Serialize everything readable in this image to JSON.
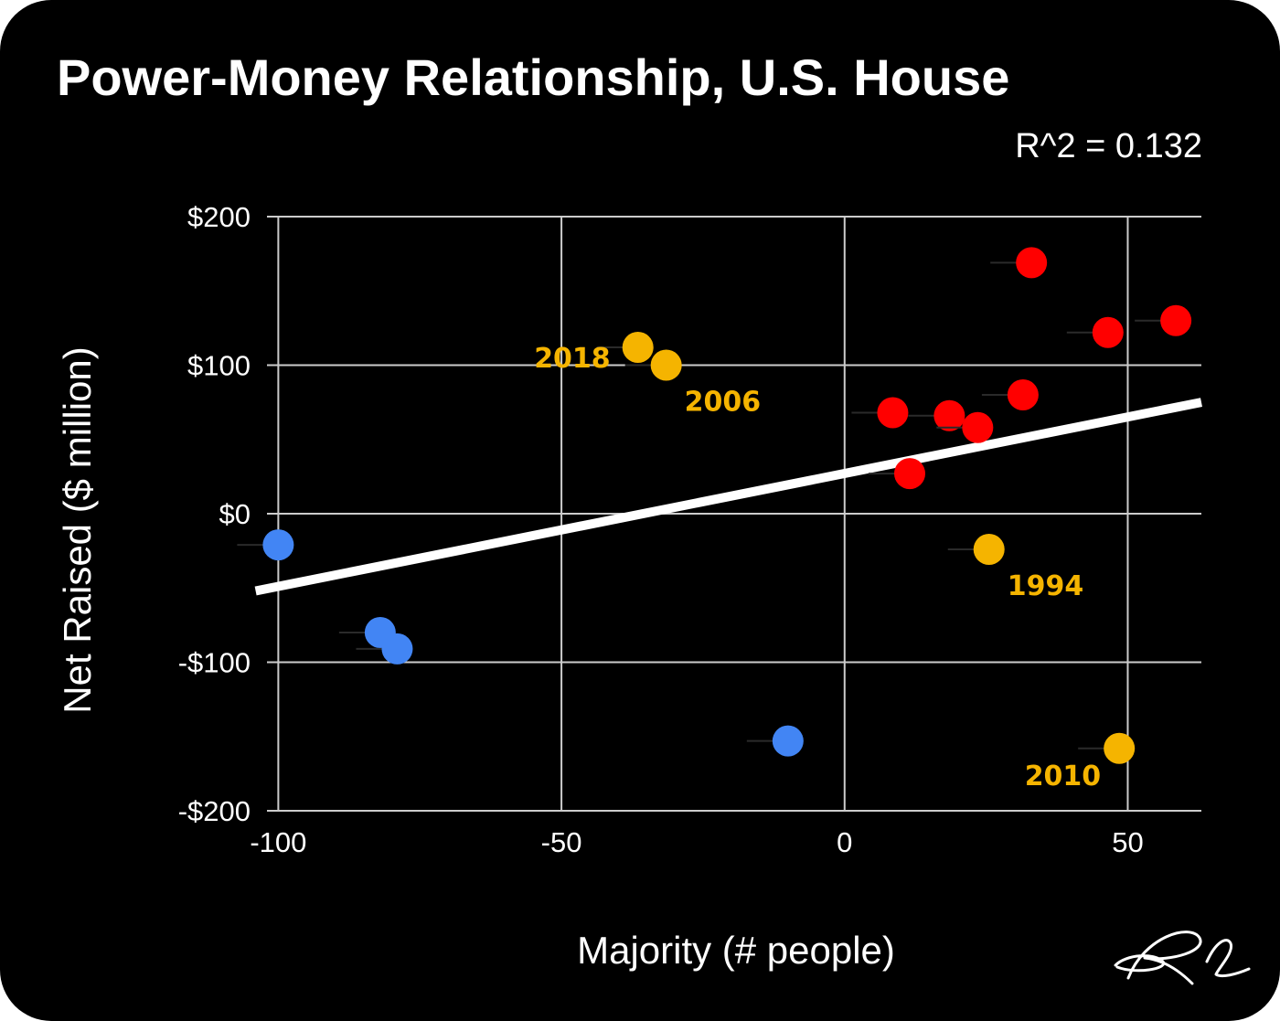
{
  "title": "Power-Money Relationship, U.S. House",
  "annotation": "R^2 = 0.132",
  "signature": "RL",
  "chart_data": {
    "type": "scatter",
    "title": "Power-Money Relationship, U.S. House",
    "xlabel": "Majority (# people)",
    "ylabel": "Net Raised ($ million)",
    "xlim": [
      -102,
      63
    ],
    "ylim": [
      -200,
      200
    ],
    "x_ticks": [
      -100,
      -50,
      0,
      50
    ],
    "x_tick_labels": [
      "-100",
      "-50",
      "0",
      "50"
    ],
    "y_ticks": [
      200,
      100,
      0,
      -100,
      -200
    ],
    "y_tick_labels": [
      "$200",
      "$100",
      "$0",
      "-$100",
      "-$200"
    ],
    "grid": true,
    "legend": "none",
    "r_squared": 0.132,
    "colors": {
      "blue": "#4285f4",
      "red": "#ff0000",
      "yellow": "#f5b400",
      "trendline": "#ffffff",
      "grid": "#cccccc"
    },
    "trendline": {
      "x": [
        -104,
        63
      ],
      "y": [
        -52,
        75
      ]
    },
    "series": [
      {
        "color": "#4285f4",
        "points": [
          [
            -100,
            -21
          ],
          [
            -82,
            -80
          ],
          [
            -79,
            -91
          ],
          [
            -10,
            -153
          ]
        ]
      },
      {
        "color": "#ff0000",
        "points": [
          [
            8.5,
            68
          ],
          [
            11.5,
            27
          ],
          [
            18.5,
            66
          ],
          [
            23.5,
            58
          ],
          [
            31.5,
            80
          ],
          [
            33,
            169
          ],
          [
            46.5,
            122
          ],
          [
            58.5,
            130
          ]
        ]
      },
      {
        "color": "#f5b400",
        "points": [
          [
            -36.5,
            112
          ],
          [
            -31.5,
            100
          ],
          [
            25.5,
            -24
          ],
          [
            48.5,
            -158
          ]
        ]
      }
    ],
    "point_labels": [
      {
        "text": "2018",
        "x": -36.5,
        "y": 112,
        "side": "left"
      },
      {
        "text": "2006",
        "x": -31.5,
        "y": 100,
        "side": "below-right"
      },
      {
        "text": "1994",
        "x": 25.5,
        "y": -24,
        "side": "below-right"
      },
      {
        "text": "2010",
        "x": 48.5,
        "y": -158,
        "side": "below-left"
      }
    ]
  }
}
